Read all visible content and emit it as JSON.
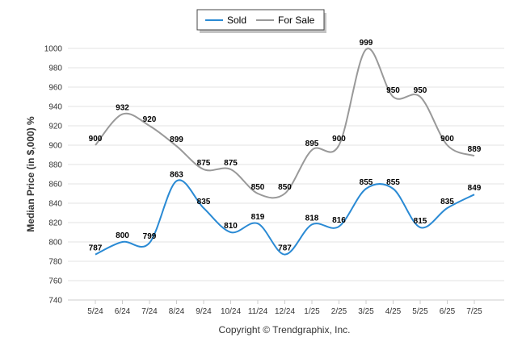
{
  "chart_data": {
    "type": "line",
    "categories": [
      "5/24",
      "6/24",
      "7/24",
      "8/24",
      "9/24",
      "10/24",
      "11/24",
      "12/24",
      "1/25",
      "2/25",
      "3/25",
      "4/25",
      "5/25",
      "6/25",
      "7/25"
    ],
    "series": [
      {
        "name": "Sold",
        "color": "#2a8ad4",
        "values": [
          787,
          800,
          799,
          863,
          835,
          810,
          819,
          787,
          818,
          816,
          855,
          855,
          815,
          835,
          849
        ]
      },
      {
        "name": "For Sale",
        "color": "#999999",
        "values": [
          900,
          932,
          920,
          899,
          875,
          875,
          850,
          850,
          895,
          900,
          999,
          950,
          950,
          900,
          889
        ]
      }
    ],
    "ylabel": "Median Price (in $,000) %",
    "ylim": [
      740,
      1000
    ],
    "yticks": [
      740,
      760,
      780,
      800,
      820,
      840,
      860,
      880,
      900,
      920,
      940,
      960,
      980,
      1000
    ],
    "grid": true,
    "legend_position": "top-center",
    "footer": "Copyright © Trendgraphix, Inc."
  }
}
